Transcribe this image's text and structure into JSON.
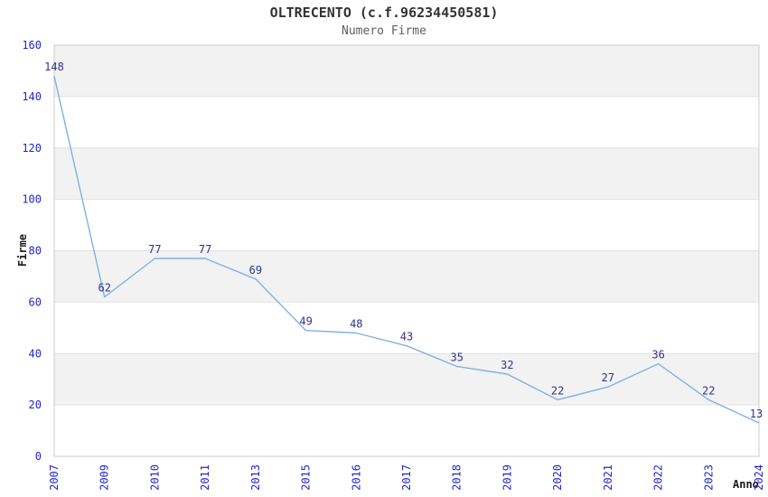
{
  "chart_data": {
    "type": "line",
    "title": "OLTRECENTO (c.f.96234450581)",
    "subtitle": "Numero Firme",
    "xlabel": "Anno",
    "ylabel": "Firme",
    "categories": [
      "2007",
      "2009",
      "2010",
      "2011",
      "2013",
      "2015",
      "2016",
      "2017",
      "2018",
      "2019",
      "2020",
      "2021",
      "2022",
      "2023",
      "2024"
    ],
    "values": [
      148,
      62,
      77,
      77,
      69,
      49,
      48,
      43,
      35,
      32,
      22,
      27,
      36,
      22,
      13
    ],
    "ylim": [
      0,
      160
    ],
    "ytick_step": 20,
    "yticks": [
      0,
      20,
      40,
      60,
      80,
      100,
      120,
      140,
      160
    ],
    "grid": "alternating-horizontal-bands",
    "legend_position": "none",
    "data_labels_visible": true,
    "colors": {
      "line": "#82b0e2",
      "tick_labels": "#2424cc",
      "data_labels": "#32318f",
      "band": "#f2f2f2",
      "grid_line": "#e2e2e2",
      "plot_border": "#cccccc",
      "title": "#333333",
      "subtitle": "#5f5f5f",
      "axis_titles": "#1a1a1a",
      "background": "#ffffff"
    }
  }
}
